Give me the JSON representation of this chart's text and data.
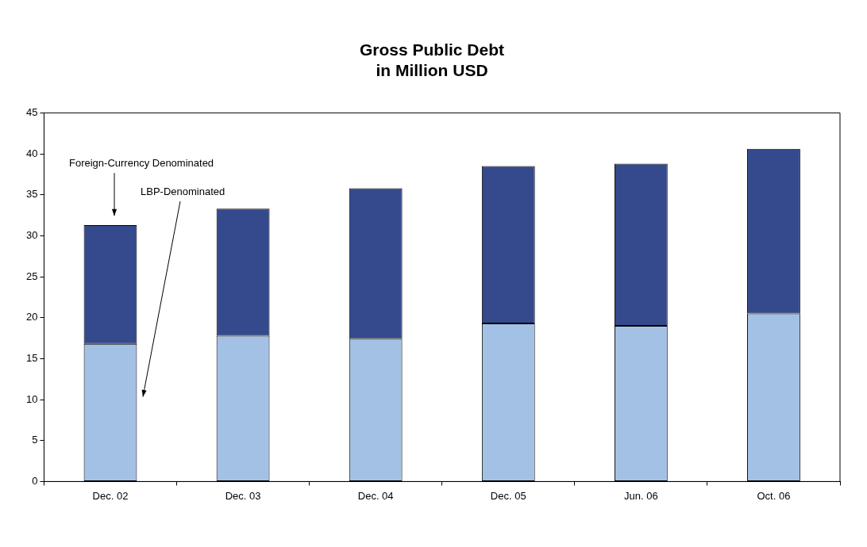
{
  "chart_data": {
    "type": "bar",
    "title": "Gross Public Debt\nin Million USD",
    "categories": [
      "Dec. 02",
      "Dec. 03",
      "Dec. 04",
      "Dec. 05",
      "Jun. 06",
      "Oct. 06"
    ],
    "stacked": true,
    "series": [
      {
        "color": "#a3c1e5",
        "values": [
          16.8,
          17.8,
          17.4,
          19.3,
          19.0,
          20.5
        ]
      },
      {
        "color": "#344a8c",
        "values": [
          14.5,
          15.5,
          18.4,
          19.2,
          19.8,
          20.1
        ]
      }
    ],
    "ylim": [
      0,
      45
    ],
    "yticks": [
      0,
      5,
      10,
      15,
      20,
      25,
      30,
      35,
      40,
      45
    ],
    "grid": false,
    "legend": false,
    "annotations": [
      "Foreign-Currency Denominated",
      "LBP-Denominated"
    ]
  }
}
